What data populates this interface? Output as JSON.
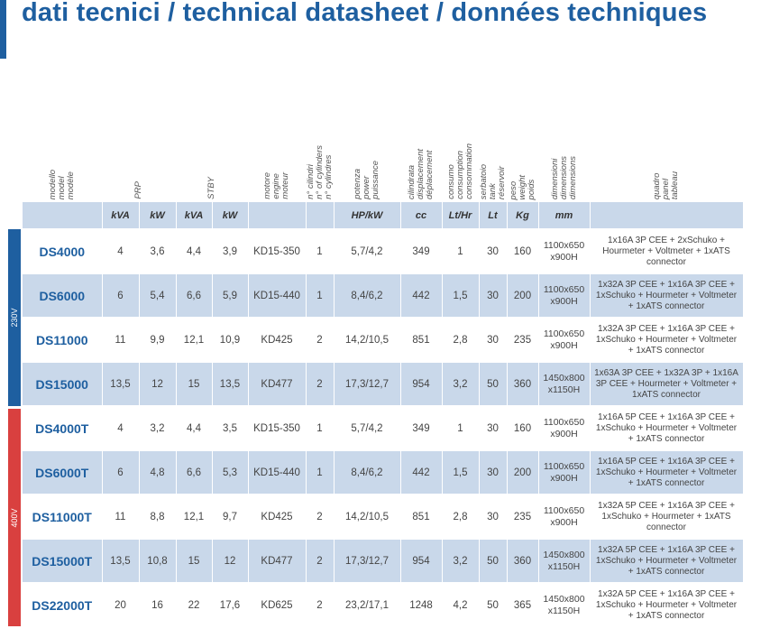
{
  "title": "dati tecnici / technical datasheet / données techniques",
  "voltage_labels": {
    "v230": "230V",
    "v400": "400V"
  },
  "colors": {
    "brand_blue": "#1e5fa0",
    "light_blue": "#c9d8ea",
    "red": "#d9403f"
  },
  "headers": {
    "model": "modello\nmodel\nmodèle",
    "prp": "PRP",
    "stby": "STBY",
    "engine": "motore\nengine\nmoteur",
    "cylinders": "n° cilindri\nn° of cylinders\nn° cylindres",
    "power": "potenza\npower\npuissance",
    "displacement": "cilindrata\ndisplacement\ndéplacement",
    "consumption": "consumo\nconsumption\nconsommation",
    "tank": "serbatoio\ntank\nréservoir",
    "weight": "peso\nweight\npoids",
    "dimensions": "dimensioni\ndimensions\ndimensions",
    "panel": "quadro\npanel\ntableau"
  },
  "units": [
    "kVA",
    "kW",
    "kVA",
    "kW",
    "HP/kW",
    "cc",
    "Lt/Hr",
    "Lt",
    "Kg",
    "mm"
  ],
  "rows": [
    {
      "model": "DS4000",
      "prp_kva": "4",
      "prp_kw": "3,6",
      "stby_kva": "4,4",
      "stby_kw": "3,9",
      "engine": "KD15-350",
      "cyl": "1",
      "power": "5,7/4,2",
      "cc": "349",
      "cons": "1",
      "tank": "30",
      "weight": "160",
      "dim1": "1100x650",
      "dim2": "x900H",
      "panel": "1x16A 3P CEE + 2xSchuko + Hourmeter + Voltmeter + 1xATS connector"
    },
    {
      "model": "DS6000",
      "prp_kva": "6",
      "prp_kw": "5,4",
      "stby_kva": "6,6",
      "stby_kw": "5,9",
      "engine": "KD15-440",
      "cyl": "1",
      "power": "8,4/6,2",
      "cc": "442",
      "cons": "1,5",
      "tank": "30",
      "weight": "200",
      "dim1": "1100x650",
      "dim2": "x900H",
      "panel": "1x32A 3P CEE + 1x16A 3P CEE + 1xSchuko + Hourmeter + Voltmeter + 1xATS connector"
    },
    {
      "model": "DS11000",
      "prp_kva": "11",
      "prp_kw": "9,9",
      "stby_kva": "12,1",
      "stby_kw": "10,9",
      "engine": "KD425",
      "cyl": "2",
      "power": "14,2/10,5",
      "cc": "851",
      "cons": "2,8",
      "tank": "30",
      "weight": "235",
      "dim1": "1100x650",
      "dim2": "x900H",
      "panel": "1x32A 3P CEE + 1x16A 3P CEE + 1xSchuko + Hourmeter + Voltmeter + 1xATS connector"
    },
    {
      "model": "DS15000",
      "prp_kva": "13,5",
      "prp_kw": "12",
      "stby_kva": "15",
      "stby_kw": "13,5",
      "engine": "KD477",
      "cyl": "2",
      "power": "17,3/12,7",
      "cc": "954",
      "cons": "3,2",
      "tank": "50",
      "weight": "360",
      "dim1": "1450x800",
      "dim2": "x1150H",
      "panel": "1x63A 3P CEE + 1x32A 3P + 1x16A 3P CEE + Hourmeter + Voltmeter + 1xATS connector"
    },
    {
      "model": "DS4000T",
      "prp_kva": "4",
      "prp_kw": "3,2",
      "stby_kva": "4,4",
      "stby_kw": "3,5",
      "engine": "KD15-350",
      "cyl": "1",
      "power": "5,7/4,2",
      "cc": "349",
      "cons": "1",
      "tank": "30",
      "weight": "160",
      "dim1": "1100x650",
      "dim2": "x900H",
      "panel": "1x16A 5P CEE + 1x16A 3P CEE + 1xSchuko + Hourmeter + Voltmeter + 1xATS connector"
    },
    {
      "model": "DS6000T",
      "prp_kva": "6",
      "prp_kw": "4,8",
      "stby_kva": "6,6",
      "stby_kw": "5,3",
      "engine": "KD15-440",
      "cyl": "1",
      "power": "8,4/6,2",
      "cc": "442",
      "cons": "1,5",
      "tank": "30",
      "weight": "200",
      "dim1": "1100x650",
      "dim2": "x900H",
      "panel": "1x16A 5P CEE + 1x16A 3P CEE + 1xSchuko + Hourmeter + Voltmeter + 1xATS connector"
    },
    {
      "model": "DS11000T",
      "prp_kva": "11",
      "prp_kw": "8,8",
      "stby_kva": "12,1",
      "stby_kw": "9,7",
      "engine": "KD425",
      "cyl": "2",
      "power": "14,2/10,5",
      "cc": "851",
      "cons": "2,8",
      "tank": "30",
      "weight": "235",
      "dim1": "1100x650",
      "dim2": "x900H",
      "panel": "1x32A 5P CEE + 1x16A 3P CEE + 1xSchuko + Hourmeter + 1xATS connector"
    },
    {
      "model": "DS15000T",
      "prp_kva": "13,5",
      "prp_kw": "10,8",
      "stby_kva": "15",
      "stby_kw": "12",
      "engine": "KD477",
      "cyl": "2",
      "power": "17,3/12,7",
      "cc": "954",
      "cons": "3,2",
      "tank": "50",
      "weight": "360",
      "dim1": "1450x800",
      "dim2": "x1150H",
      "panel": "1x32A 5P CEE + 1x16A 3P CEE + 1xSchuko + Hourmeter + Voltmeter + 1xATS connector"
    },
    {
      "model": "DS22000T",
      "prp_kva": "20",
      "prp_kw": "16",
      "stby_kva": "22",
      "stby_kw": "17,6",
      "engine": "KD625",
      "cyl": "2",
      "power": "23,2/17,1",
      "cc": "1248",
      "cons": "4,2",
      "tank": "50",
      "weight": "365",
      "dim1": "1450x800",
      "dim2": "x1150H",
      "panel": "1x32A 5P CEE + 1x16A 3P CEE + 1xSchuko + Hourmeter + Voltmeter + 1xATS connector"
    }
  ]
}
